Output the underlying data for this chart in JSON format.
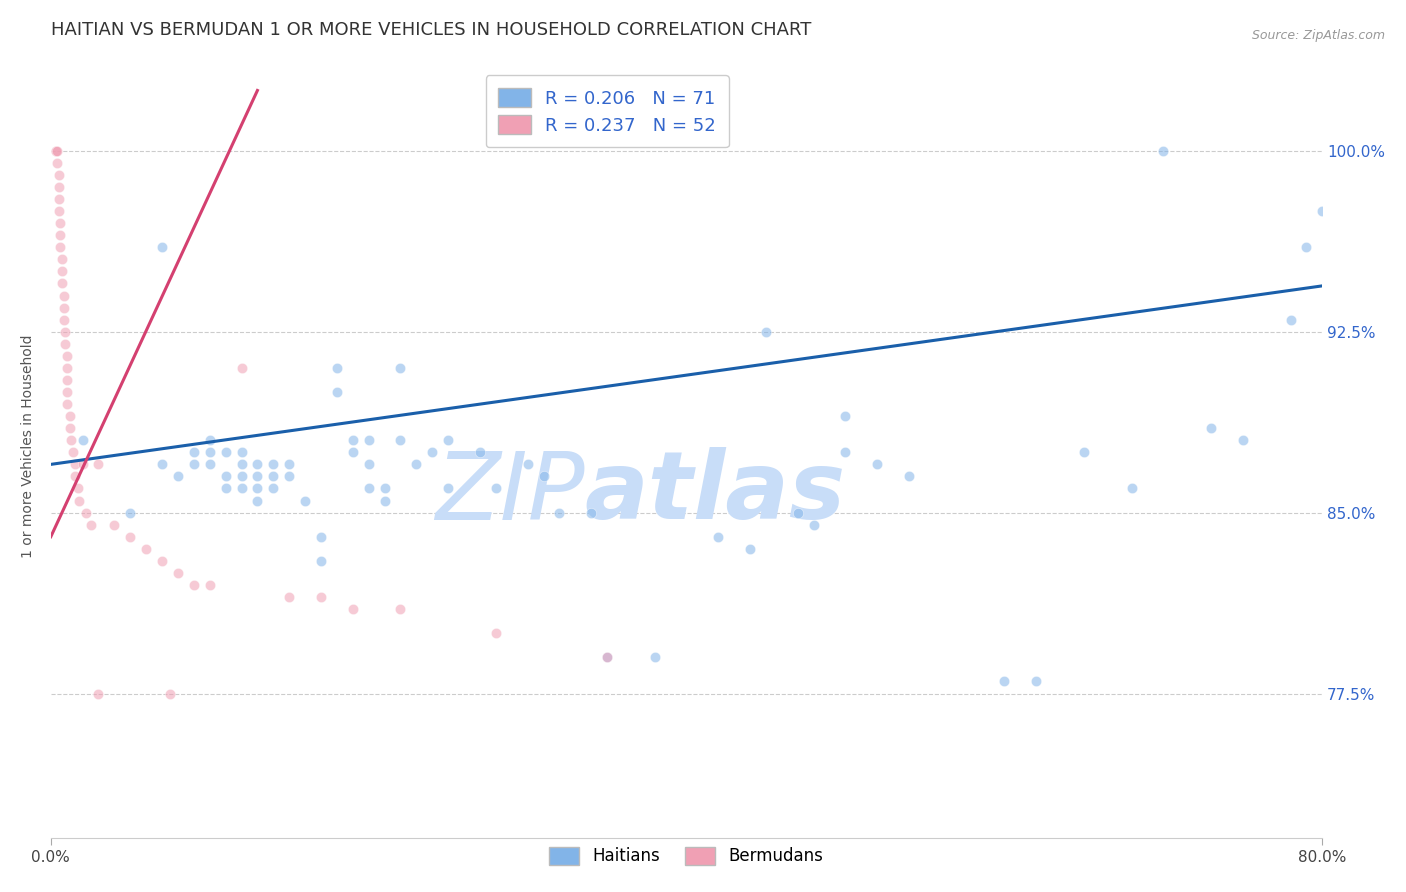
{
  "title": "HAITIAN VS BERMUDAN 1 OR MORE VEHICLES IN HOUSEHOLD CORRELATION CHART",
  "source": "Source: ZipAtlas.com",
  "ylabel": "1 or more Vehicles in Household",
  "ytick_labels": [
    "100.0%",
    "92.5%",
    "85.0%",
    "77.5%"
  ],
  "ytick_values": [
    1.0,
    0.925,
    0.85,
    0.775
  ],
  "xlim": [
    0.0,
    0.8
  ],
  "ylim": [
    0.715,
    1.04
  ],
  "xtick_positions": [
    0.0,
    0.8
  ],
  "xtick_labels": [
    "0.0%",
    "80.0%"
  ],
  "blue_scatter_x": [
    0.02,
    0.05,
    0.07,
    0.07,
    0.08,
    0.09,
    0.09,
    0.1,
    0.1,
    0.1,
    0.11,
    0.11,
    0.11,
    0.12,
    0.12,
    0.12,
    0.12,
    0.13,
    0.13,
    0.13,
    0.13,
    0.14,
    0.14,
    0.14,
    0.15,
    0.15,
    0.16,
    0.17,
    0.17,
    0.18,
    0.18,
    0.19,
    0.19,
    0.2,
    0.2,
    0.2,
    0.21,
    0.21,
    0.22,
    0.22,
    0.23,
    0.24,
    0.25,
    0.25,
    0.27,
    0.28,
    0.3,
    0.31,
    0.32,
    0.34,
    0.35,
    0.38,
    0.42,
    0.44,
    0.45,
    0.47,
    0.48,
    0.5,
    0.5,
    0.52,
    0.54,
    0.6,
    0.62,
    0.65,
    0.68,
    0.7,
    0.73,
    0.75,
    0.78,
    0.79,
    0.8
  ],
  "blue_scatter_y": [
    0.88,
    0.85,
    0.87,
    0.96,
    0.865,
    0.875,
    0.87,
    0.87,
    0.875,
    0.88,
    0.86,
    0.865,
    0.875,
    0.86,
    0.865,
    0.87,
    0.875,
    0.855,
    0.86,
    0.865,
    0.87,
    0.86,
    0.865,
    0.87,
    0.865,
    0.87,
    0.855,
    0.84,
    0.83,
    0.9,
    0.91,
    0.875,
    0.88,
    0.86,
    0.87,
    0.88,
    0.855,
    0.86,
    0.88,
    0.91,
    0.87,
    0.875,
    0.88,
    0.86,
    0.875,
    0.86,
    0.87,
    0.865,
    0.85,
    0.85,
    0.79,
    0.79,
    0.84,
    0.835,
    0.925,
    0.85,
    0.845,
    0.875,
    0.89,
    0.87,
    0.865,
    0.78,
    0.78,
    0.875,
    0.86,
    1.0,
    0.885,
    0.88,
    0.93,
    0.96,
    0.975
  ],
  "pink_scatter_x": [
    0.003,
    0.003,
    0.004,
    0.004,
    0.005,
    0.005,
    0.005,
    0.005,
    0.006,
    0.006,
    0.006,
    0.007,
    0.007,
    0.007,
    0.008,
    0.008,
    0.008,
    0.009,
    0.009,
    0.01,
    0.01,
    0.01,
    0.01,
    0.01,
    0.012,
    0.012,
    0.013,
    0.014,
    0.015,
    0.015,
    0.017,
    0.018,
    0.02,
    0.022,
    0.025,
    0.03,
    0.04,
    0.05,
    0.06,
    0.07,
    0.08,
    0.09,
    0.1,
    0.12,
    0.15,
    0.17,
    0.19,
    0.22,
    0.28,
    0.35,
    0.03,
    0.075
  ],
  "pink_scatter_y": [
    1.0,
    1.0,
    1.0,
    0.995,
    0.99,
    0.985,
    0.98,
    0.975,
    0.97,
    0.965,
    0.96,
    0.955,
    0.95,
    0.945,
    0.94,
    0.935,
    0.93,
    0.925,
    0.92,
    0.915,
    0.91,
    0.905,
    0.9,
    0.895,
    0.89,
    0.885,
    0.88,
    0.875,
    0.87,
    0.865,
    0.86,
    0.855,
    0.87,
    0.85,
    0.845,
    0.87,
    0.845,
    0.84,
    0.835,
    0.83,
    0.825,
    0.82,
    0.82,
    0.91,
    0.815,
    0.815,
    0.81,
    0.81,
    0.8,
    0.79,
    0.775,
    0.775
  ],
  "blue_line_x": [
    0.0,
    0.8
  ],
  "blue_line_y": [
    0.87,
    0.944
  ],
  "pink_line_x": [
    0.0,
    0.13
  ],
  "pink_line_y": [
    0.84,
    1.025
  ],
  "scatter_alpha": 0.55,
  "scatter_size": 55,
  "scatter_color_blue": "#82b4e8",
  "scatter_color_pink": "#f0a0b4",
  "scatter_edgecolor": "white",
  "line_color_blue": "#1a5faa",
  "line_color_pink": "#d44070",
  "grid_color": "#cccccc",
  "background_color": "#ffffff",
  "title_fontsize": 13,
  "axis_label_fontsize": 10,
  "tick_label_color_right": "#3366cc",
  "legend_r_color": "#3366cc",
  "legend_n_color": "#cc2222",
  "watermark_zip": "ZIP",
  "watermark_atlas": "atlas",
  "watermark_color": "#c8ddf8",
  "watermark_fontsize_zip": 68,
  "watermark_fontsize_atlas": 68
}
